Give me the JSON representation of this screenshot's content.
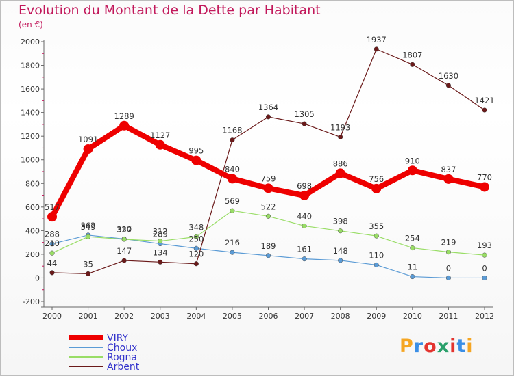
{
  "title": "Evolution du Montant de la Dette par Habitant",
  "unit": "(en €)",
  "logo": {
    "text": "Proxiti",
    "colors": [
      "#f5a623",
      "#3a8ee6",
      "#e3342f",
      "#2aa06b",
      "#e3342f",
      "#3a8ee6",
      "#f5a623"
    ]
  },
  "chart_data": {
    "type": "line",
    "title": "Evolution du Montant de la Dette par Habitant",
    "ylabel": "(en €)",
    "x": [
      "2000",
      "2001",
      "2002",
      "2003",
      "2004",
      "2005",
      "2006",
      "2007",
      "2008",
      "2009",
      "2010",
      "2011",
      "2012"
    ],
    "ylim": [
      -200,
      2000
    ],
    "yticks": [
      -200,
      0,
      200,
      400,
      600,
      800,
      1000,
      1200,
      1400,
      1600,
      1800,
      2000
    ],
    "grid": false,
    "legend": "bottom-left",
    "series": [
      {
        "name": "VIRY",
        "color": "#ee0000",
        "weight": "thick",
        "values": [
          517,
          1091,
          1289,
          1127,
          995,
          840,
          759,
          698,
          886,
          756,
          910,
          837,
          770
        ],
        "labels": [
          "517",
          "1091",
          "1289",
          "1127",
          "995",
          "840",
          "759",
          "698",
          "886",
          "756",
          "910",
          "837",
          "770"
        ]
      },
      {
        "name": "Choux",
        "color": "#5b9bd5",
        "weight": "thin",
        "values": [
          288,
          362,
          330,
          289,
          250,
          216,
          189,
          161,
          148,
          110,
          11,
          0,
          0
        ],
        "labels": [
          "288",
          "362",
          "330",
          "289",
          "250",
          "216",
          "189",
          "161",
          "148",
          "110",
          "11",
          "0",
          "0"
        ]
      },
      {
        "name": "Rogna",
        "color": "#99dd66",
        "weight": "thin",
        "values": [
          210,
          349,
          327,
          312,
          348,
          569,
          522,
          440,
          398,
          355,
          254,
          219,
          193
        ],
        "labels": [
          "210",
          "349",
          "327",
          "312",
          "348",
          "569",
          "522",
          "440",
          "398",
          "355",
          "254",
          "219",
          "193"
        ]
      },
      {
        "name": "Arbent",
        "color": "#6b1a1a",
        "weight": "thin",
        "values": [
          44,
          35,
          147,
          134,
          120,
          1168,
          1364,
          1305,
          1193,
          1937,
          1807,
          1630,
          1421
        ],
        "labels": [
          "44",
          "35",
          "147",
          "134",
          "120",
          "1168",
          "1364",
          "1305",
          "1193",
          "1937",
          "1807",
          "1630",
          "1421"
        ]
      }
    ]
  }
}
